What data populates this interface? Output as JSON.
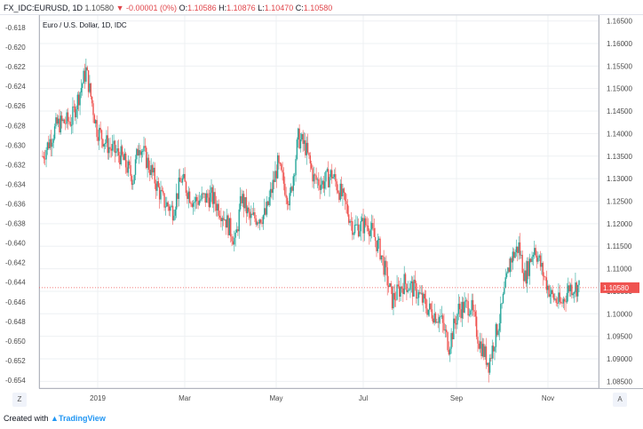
{
  "header": {
    "symbol": "FX_IDC:EURUSD, 1D",
    "last": "1.10580",
    "change": "▼ -0.00001 (0%)",
    "o_label": "O:",
    "o_value": "1.10586",
    "h_label": "H:",
    "h_value": "1.10876",
    "l_label": "L:",
    "l_value": "1.10470",
    "c_label": "C:",
    "c_value": "1.10580"
  },
  "footer": {
    "created_with": "Created with",
    "brand": "TradingView"
  },
  "axis_buttons": {
    "left": "Z",
    "right": "A"
  },
  "colors": {
    "up": "#26a69a",
    "down": "#ef5350",
    "price_line": "#ef5350",
    "grid": "#eef0f3",
    "axis_text": "#4a4a4a"
  },
  "chart_data": {
    "type": "candlestick",
    "title": "Euro / U.S. Dollar, 1D, IDC",
    "right_axis": {
      "ticks": [
        "1.16500",
        "1.16000",
        "1.15500",
        "1.15000",
        "1.14500",
        "1.14000",
        "1.13500",
        "1.13000",
        "1.12500",
        "1.12000",
        "1.11500",
        "1.11000",
        "1.10500",
        "1.10000",
        "1.09500",
        "1.09000",
        "1.08500"
      ],
      "range": [
        1.0835,
        1.1663
      ]
    },
    "left_axis": {
      "ticks": [
        "-0.618",
        "-0.620",
        "-0.622",
        "-0.624",
        "-0.626",
        "-0.628",
        "-0.630",
        "-0.632",
        "-0.634",
        "-0.636",
        "-0.638",
        "-0.640",
        "-0.642",
        "-0.644",
        "-0.646",
        "-0.648",
        "-0.650",
        "-0.652",
        "-0.654"
      ]
    },
    "x_ticks": [
      "2019",
      "Mar",
      "May",
      "Jul",
      "Sep",
      "Nov"
    ],
    "last_price": "1.10580",
    "close_path": [
      [
        0,
        1.135
      ],
      [
        12,
        1.142
      ],
      [
        24,
        1.143
      ],
      [
        36,
        1.154
      ],
      [
        45,
        1.141
      ],
      [
        55,
        1.137
      ],
      [
        65,
        1.135
      ],
      [
        75,
        1.13
      ],
      [
        80,
        1.138
      ],
      [
        88,
        1.133
      ],
      [
        100,
        1.125
      ],
      [
        108,
        1.123
      ],
      [
        115,
        1.13
      ],
      [
        125,
        1.125
      ],
      [
        140,
        1.126
      ],
      [
        150,
        1.122
      ],
      [
        160,
        1.116
      ],
      [
        165,
        1.126
      ],
      [
        172,
        1.121
      ],
      [
        185,
        1.122
      ],
      [
        195,
        1.133
      ],
      [
        205,
        1.125
      ],
      [
        212,
        1.139
      ],
      [
        218,
        1.137
      ],
      [
        225,
        1.13
      ],
      [
        232,
        1.129
      ],
      [
        240,
        1.131
      ],
      [
        250,
        1.125
      ],
      [
        258,
        1.119
      ],
      [
        270,
        1.12
      ],
      [
        280,
        1.114
      ],
      [
        290,
        1.103
      ],
      [
        300,
        1.107
      ],
      [
        310,
        1.105
      ],
      [
        320,
        1.101
      ],
      [
        330,
        1.099
      ],
      [
        337,
        1.093
      ],
      [
        345,
        1.101
      ],
      [
        355,
        1.102
      ],
      [
        362,
        1.094
      ],
      [
        370,
        1.089
      ],
      [
        380,
        1.1
      ],
      [
        388,
        1.112
      ],
      [
        395,
        1.115
      ],
      [
        400,
        1.108
      ],
      [
        408,
        1.115
      ],
      [
        415,
        1.109
      ],
      [
        422,
        1.104
      ],
      [
        430,
        1.102
      ],
      [
        437,
        1.106
      ],
      [
        445,
        1.106
      ]
    ]
  }
}
